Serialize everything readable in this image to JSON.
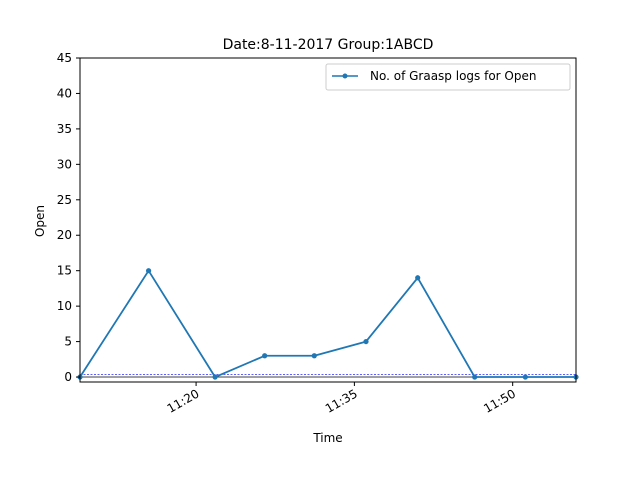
{
  "chart_data": {
    "type": "line",
    "title": "Date:8-11-2017  Group:1ABCD",
    "xlabel": "Time",
    "ylabel": "Open",
    "xlim": [
      "11:09",
      "11:56"
    ],
    "ylim": [
      -0.7,
      45
    ],
    "yticks": [
      0,
      5,
      10,
      15,
      20,
      25,
      30,
      35,
      40,
      45
    ],
    "xticks": [
      "11:20",
      "11:35",
      "11:50"
    ],
    "x": [
      "11:09",
      "11:15.5",
      "11:21.8",
      "11:26.5",
      "11:31.2",
      "11:36.1",
      "11:41",
      "11:46.4",
      "11:51.2",
      "11:56"
    ],
    "series": [
      {
        "name": "No. of Graasp logs for Open",
        "values": [
          0,
          15,
          0,
          3,
          3,
          5,
          14,
          0,
          0,
          0
        ],
        "color": "#1f77b4",
        "marker": "dot"
      }
    ],
    "reference_lines": [
      {
        "y": 0,
        "color": "#000000",
        "style": "solid"
      },
      {
        "y": 0.35,
        "color": "#0000ff",
        "style": "dashed"
      }
    ],
    "legend_position": "top-right",
    "grid": false
  }
}
